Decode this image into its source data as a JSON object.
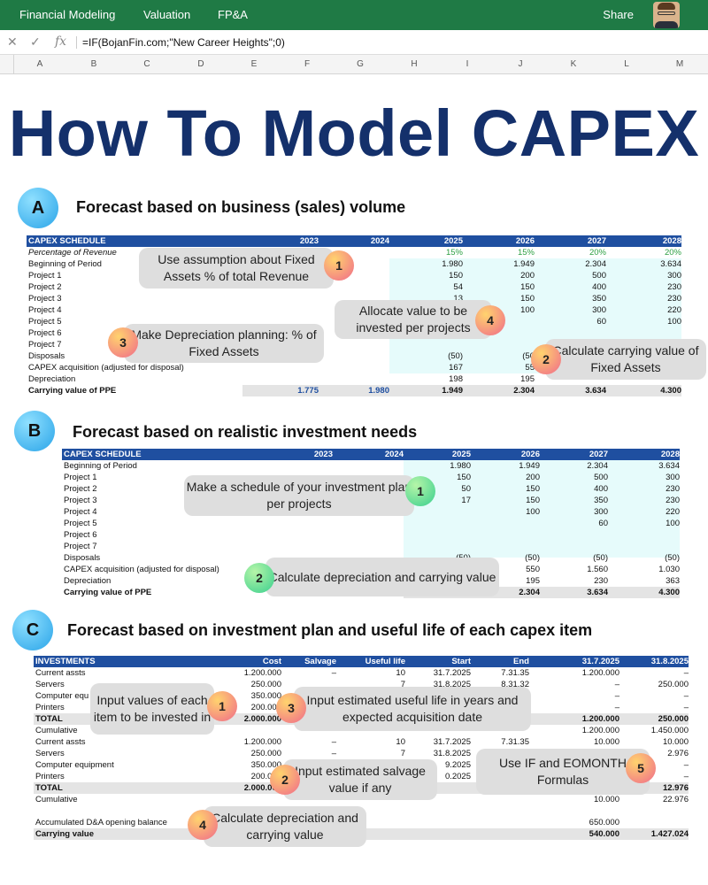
{
  "topbar": {
    "nav": [
      "Financial Modeling",
      "Valuation",
      "FP&A"
    ],
    "share": "Share"
  },
  "formula_bar": {
    "formula": "=IF(BojanFin.com;\"New Career Heights\";0)"
  },
  "columns": [
    "A",
    "B",
    "C",
    "D",
    "E",
    "F",
    "G",
    "H",
    "I",
    "J",
    "K",
    "L",
    "M"
  ],
  "title": "How To Model CAPEX",
  "sectionA": {
    "badge": "A",
    "heading": "Forecast based on business (sales) volume",
    "header": [
      "CAPEX SCHEDULE",
      "2023",
      "2024",
      "2025",
      "2026",
      "2027",
      "2028"
    ],
    "rows": [
      {
        "label": "Percentage of Revenue",
        "v": [
          "",
          "",
          "15%",
          "15%",
          "20%",
          "20%"
        ]
      },
      {
        "label": "Beginning of Period",
        "v": [
          "",
          "",
          "1.980",
          "1.949",
          "2.304",
          "3.634"
        ]
      },
      {
        "label": "Project 1",
        "v": [
          "",
          "",
          "150",
          "200",
          "500",
          "300"
        ]
      },
      {
        "label": "Project 2",
        "v": [
          "",
          "",
          "54",
          "150",
          "400",
          "230"
        ]
      },
      {
        "label": "Project 3",
        "v": [
          "",
          "",
          "13",
          "150",
          "350",
          "230"
        ]
      },
      {
        "label": "Project 4",
        "v": [
          "",
          "",
          "",
          "100",
          "300",
          "220"
        ]
      },
      {
        "label": "Project 5",
        "v": [
          "",
          "",
          "",
          "",
          "60",
          "100"
        ]
      },
      {
        "label": "Project 6",
        "v": [
          "",
          "",
          "",
          "",
          "",
          ""
        ]
      },
      {
        "label": "Project 7",
        "v": [
          "",
          "",
          "",
          "",
          "",
          ""
        ]
      },
      {
        "label": "Disposals",
        "v": [
          "",
          "",
          "(50)",
          "(50",
          "",
          ""
        ]
      },
      {
        "label": "CAPEX acquisition (adjusted for disposal)",
        "v": [
          "",
          "",
          "167",
          "55",
          "",
          ""
        ]
      },
      {
        "label": "Depreciation",
        "v": [
          "",
          "",
          "198",
          "195",
          "",
          ""
        ]
      },
      {
        "label": "Carrying value of PPE",
        "v": [
          "1.775",
          "1.980",
          "1.949",
          "2.304",
          "3.634",
          "4.300"
        ]
      }
    ],
    "callouts": [
      {
        "num": "1",
        "text": "Use assumption about Fixed Assets % of total Revenue"
      },
      {
        "num": "4",
        "text": "Allocate value to be invested per projects"
      },
      {
        "num": "3",
        "text": "Make Depreciation planning: % of Fixed Assets"
      },
      {
        "num": "2",
        "text": "Calculate carrying value of Fixed Assets"
      }
    ]
  },
  "sectionB": {
    "badge": "B",
    "heading": "Forecast based on realistic investment needs",
    "header": [
      "CAPEX SCHEDULE",
      "2023",
      "2024",
      "2025",
      "2026",
      "2027",
      "2028"
    ],
    "rows": [
      {
        "label": "Beginning of Period",
        "v": [
          "",
          "",
          "1.980",
          "1.949",
          "2.304",
          "3.634"
        ]
      },
      {
        "label": "Project 1",
        "v": [
          "",
          "",
          "150",
          "200",
          "500",
          "300"
        ]
      },
      {
        "label": "Project 2",
        "v": [
          "",
          "",
          "50",
          "150",
          "400",
          "230"
        ]
      },
      {
        "label": "Project 3",
        "v": [
          "",
          "",
          "17",
          "150",
          "350",
          "230"
        ]
      },
      {
        "label": "Project 4",
        "v": [
          "",
          "",
          "",
          "100",
          "300",
          "220"
        ]
      },
      {
        "label": "Project 5",
        "v": [
          "",
          "",
          "",
          "",
          "60",
          "100"
        ]
      },
      {
        "label": "Project 6",
        "v": [
          "",
          "",
          "",
          "",
          "",
          ""
        ]
      },
      {
        "label": "Project 7",
        "v": [
          "",
          "",
          "",
          "",
          "",
          ""
        ]
      },
      {
        "label": "Disposals",
        "v": [
          "",
          "",
          "(50)",
          "(50)",
          "(50)",
          "(50)"
        ]
      },
      {
        "label": "CAPEX acquisition (adjusted for disposal)",
        "v": [
          "",
          "",
          "",
          "550",
          "1.560",
          "1.030"
        ]
      },
      {
        "label": "Depreciation",
        "v": [
          "",
          "",
          "",
          "195",
          "230",
          "363"
        ]
      },
      {
        "label": "Carrying value of PPE",
        "v": [
          "",
          "",
          "",
          "2.304",
          "3.634",
          "4.300"
        ]
      }
    ],
    "callouts": [
      {
        "num": "1",
        "text": "Make a schedule of your investment plan per projects"
      },
      {
        "num": "2",
        "text": "Calculate depreciation and carrying value"
      }
    ]
  },
  "sectionC": {
    "badge": "C",
    "heading": "Forecast based on investment plan and useful life of each capex item",
    "header": [
      "INVESTMENTS",
      "Cost",
      "Salvage",
      "Useful life",
      "Start",
      "End",
      "31.7.2025",
      "31.8.2025"
    ],
    "rows": [
      {
        "label": "Current assts",
        "v": [
          "1.200.000",
          "–",
          "10",
          "31.7.2025",
          "7.31.35",
          "1.200.000",
          "–"
        ]
      },
      {
        "label": "Servers",
        "v": [
          "250.000",
          "",
          "7",
          "31.8.2025",
          "8.31.32",
          "–",
          "250.000"
        ]
      },
      {
        "label": "Computer equ",
        "v": [
          "350.000",
          "",
          "",
          "",
          "",
          "–",
          "–"
        ]
      },
      {
        "label": "Printers",
        "v": [
          "200.000",
          "",
          "",
          "",
          "",
          "–",
          "–"
        ]
      },
      {
        "label": "TOTAL",
        "v": [
          "2.000.000",
          "",
          "",
          "",
          "",
          "1.200.000",
          "250.000"
        ]
      },
      {
        "label": "Cumulative",
        "v": [
          "",
          "",
          "",
          "",
          "",
          "1.200.000",
          "1.450.000"
        ]
      },
      {
        "label": "Current assts",
        "v": [
          "1.200.000",
          "–",
          "10",
          "31.7.2025",
          "7.31.35",
          "10.000",
          "10.000"
        ]
      },
      {
        "label": "Servers",
        "v": [
          "250.000",
          "–",
          "7",
          "31.8.2025",
          "",
          "–",
          "2.976"
        ]
      },
      {
        "label": "Computer equipment",
        "v": [
          "350.000",
          "",
          "",
          "9.2025",
          "",
          "",
          "–"
        ]
      },
      {
        "label": "Printers",
        "v": [
          "200.000",
          "",
          "",
          "0.2025",
          "",
          "",
          "–"
        ]
      },
      {
        "label": "TOTAL",
        "v": [
          "2.000.000",
          "",
          "",
          "",
          "",
          "",
          "12.976"
        ]
      },
      {
        "label": "Cumulative",
        "v": [
          "",
          "",
          "",
          "",
          "",
          "10.000",
          "22.976"
        ]
      },
      {
        "label": "",
        "v": [
          "",
          "",
          "",
          "",
          "",
          "",
          ""
        ]
      },
      {
        "label": "Accumulated D&A opening balance",
        "v": [
          "",
          "",
          "",
          "",
          "",
          "650.000",
          ""
        ]
      },
      {
        "label": "Carrying value",
        "v": [
          "",
          "",
          "",
          "",
          "",
          "540.000",
          "1.427.024"
        ]
      }
    ],
    "callouts": [
      {
        "num": "1",
        "text": "Input values of each item to be invested in"
      },
      {
        "num": "3",
        "text": "Input estimated useful life in years and expected acquisition date"
      },
      {
        "num": "2",
        "text": "Input estimated salvage value if any"
      },
      {
        "num": "5",
        "text": "Use IF and EOMONTH Formulas"
      },
      {
        "num": "4",
        "text": "Calculate depreciation and carrying value"
      }
    ]
  }
}
